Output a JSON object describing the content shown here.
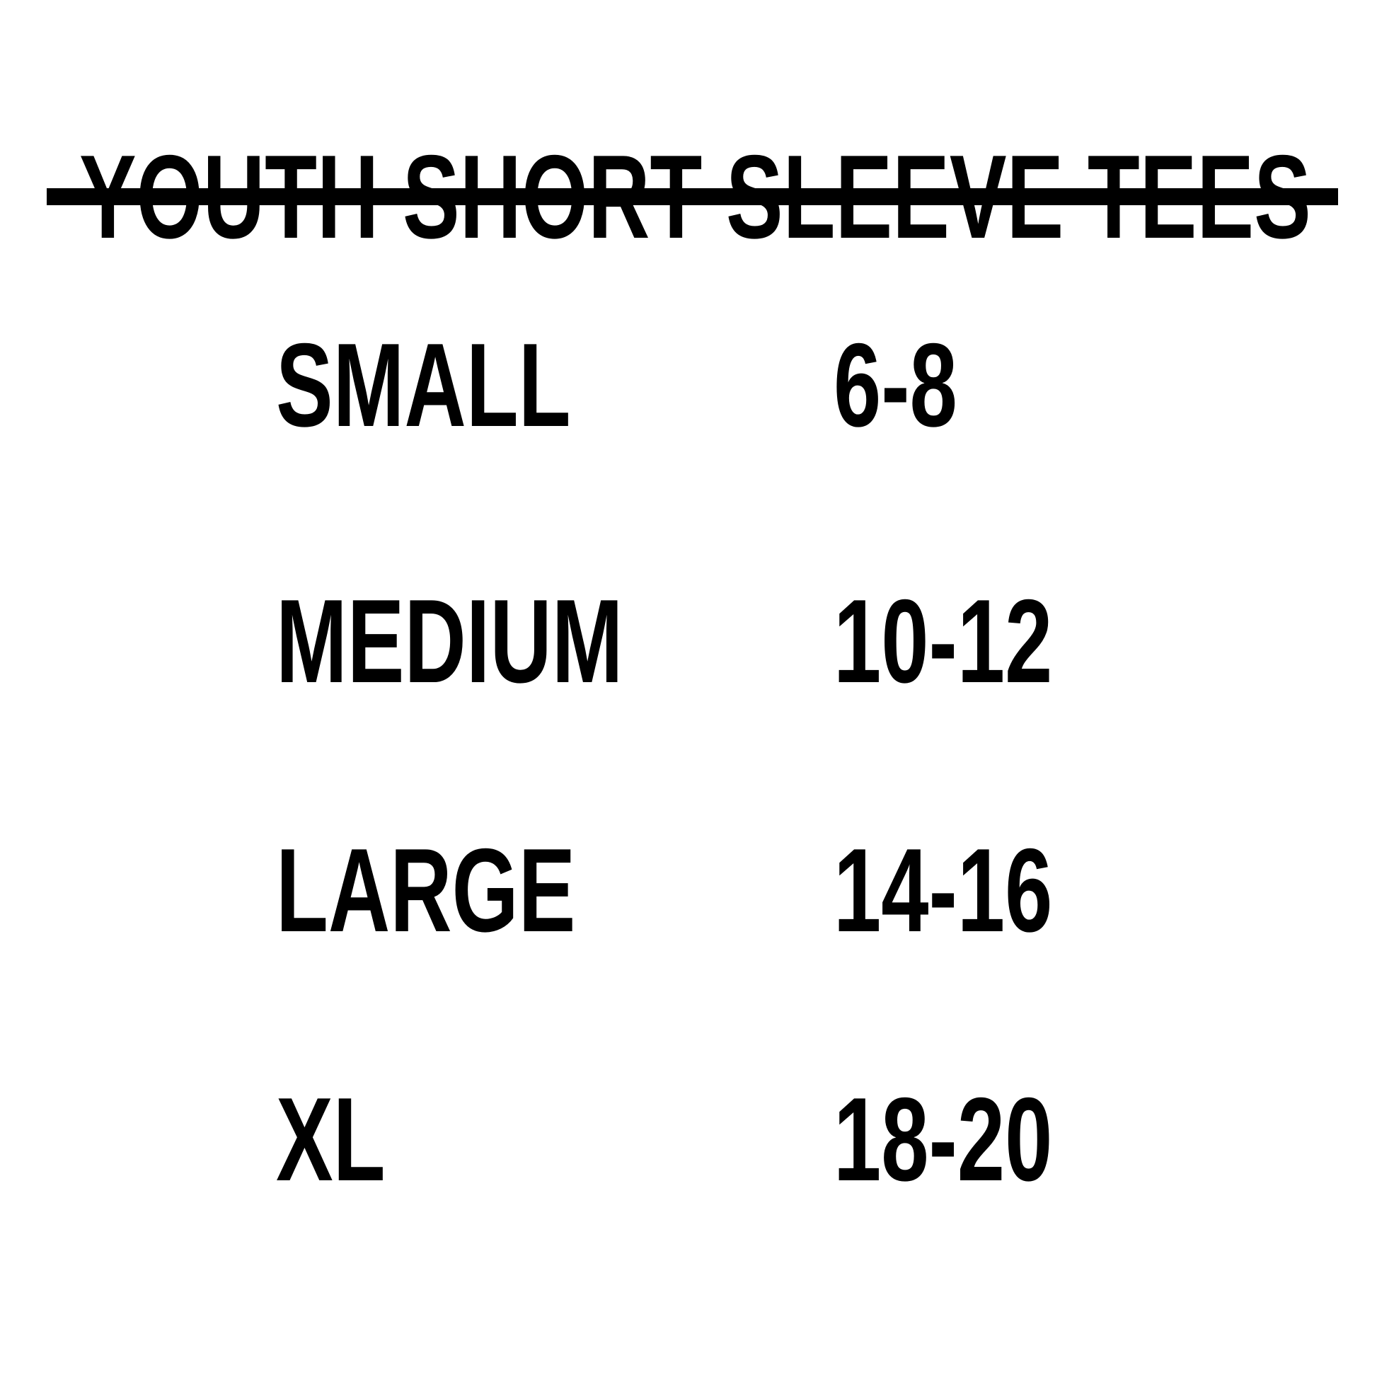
{
  "colors": {
    "background": "#ffffff",
    "text": "#000000",
    "rule": "#000000"
  },
  "size_chart": {
    "title": "YOUTH SHORT SLEEVE TEES",
    "columns": [
      "size",
      "age_range"
    ],
    "rows": [
      {
        "size": "SMALL",
        "range": "6-8"
      },
      {
        "size": "MEDIUM",
        "range": "10-12"
      },
      {
        "size": "LARGE",
        "range": "14-16"
      },
      {
        "size": "XL",
        "range": "18-20"
      }
    ]
  }
}
